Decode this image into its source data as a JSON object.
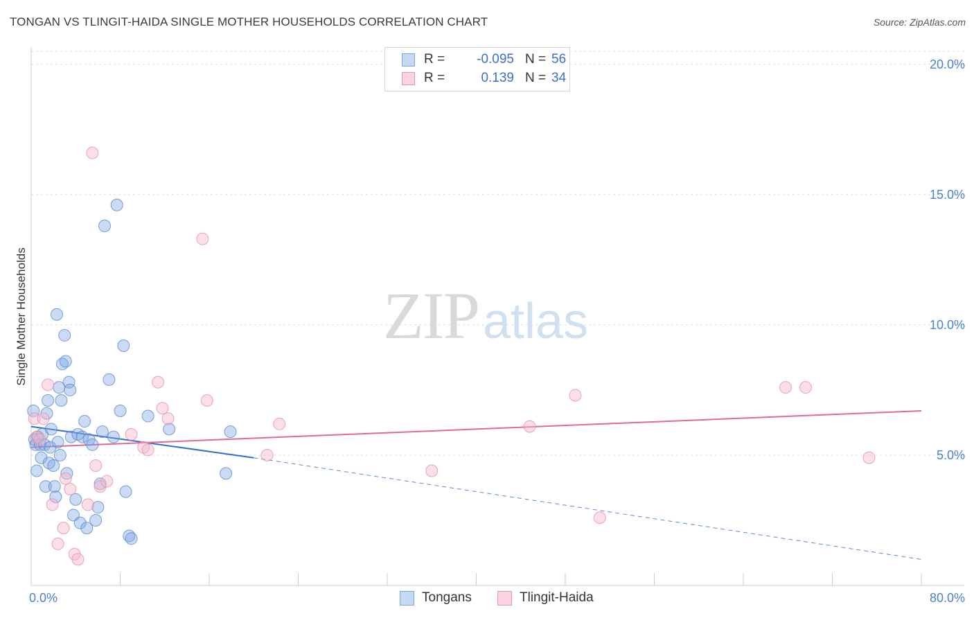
{
  "title": "TONGAN VS TLINGIT-HAIDA SINGLE MOTHER HOUSEHOLDS CORRELATION CHART",
  "source": "Source: ZipAtlas.com",
  "watermark": {
    "zip": "ZIP",
    "atlas": "atlas"
  },
  "legend": {
    "rows": [
      {
        "r_label": "R =",
        "r_value": "-0.095",
        "n_label": "N =",
        "n_value": "56",
        "color": "#7aa6e0"
      },
      {
        "r_label": "R =",
        "r_value": "0.139",
        "n_label": "N =",
        "n_value": "34",
        "color": "#e893b0"
      }
    ]
  },
  "series_legend": [
    {
      "name": "Tongans",
      "color": "#7aa6e0"
    },
    {
      "name": "Tlingit-Haida",
      "color": "#e893b0"
    }
  ],
  "chart_data": {
    "type": "scatter",
    "title": "TONGAN VS TLINGIT-HAIDA SINGLE MOTHER HOUSEHOLDS CORRELATION CHART",
    "xlabel": "",
    "ylabel": "Single Mother Households",
    "xlim": [
      0,
      80
    ],
    "ylim": [
      0,
      20.5
    ],
    "x_tick_labels": [
      "0.0%",
      "80.0%"
    ],
    "y_ticks": [
      5,
      10,
      15,
      20
    ],
    "y_tick_labels": [
      "5.0%",
      "10.0%",
      "15.0%",
      "20.0%"
    ],
    "grid": true,
    "series": [
      {
        "name": "Tongans",
        "color": "#7aa6e0",
        "stroke": "#5a8ad0",
        "x": [
          0.2,
          0.3,
          0.4,
          0.5,
          0.6,
          0.8,
          0.9,
          1.0,
          1.2,
          1.3,
          1.4,
          1.5,
          1.6,
          1.7,
          1.8,
          2.0,
          2.1,
          2.2,
          2.3,
          2.4,
          2.5,
          2.6,
          2.7,
          2.8,
          3.0,
          3.1,
          3.2,
          3.4,
          3.5,
          3.6,
          3.8,
          4.0,
          4.2,
          4.4,
          4.6,
          4.8,
          5.0,
          5.2,
          5.5,
          5.8,
          6.0,
          6.2,
          6.4,
          6.6,
          7.0,
          7.4,
          7.7,
          8.0,
          8.3,
          8.5,
          8.8,
          9.0,
          10.5,
          12.4,
          17.5,
          17.9
        ],
        "y": [
          6.7,
          5.6,
          5.4,
          4.4,
          5.7,
          5.4,
          4.9,
          5.8,
          5.4,
          3.8,
          6.6,
          7.1,
          4.7,
          5.3,
          6.0,
          4.6,
          3.8,
          3.4,
          10.4,
          5.5,
          7.6,
          5.0,
          7.1,
          8.5,
          9.6,
          8.6,
          4.3,
          7.8,
          7.5,
          5.7,
          2.7,
          3.3,
          5.8,
          2.4,
          5.7,
          6.3,
          2.2,
          5.6,
          5.4,
          2.5,
          3.0,
          3.9,
          5.9,
          13.8,
          7.9,
          5.7,
          14.6,
          6.7,
          9.2,
          3.6,
          1.9,
          1.8,
          6.5,
          6.0,
          4.3,
          5.9
        ],
        "trend": {
          "x": [
            0,
            20
          ],
          "y": [
            6.1,
            4.9
          ],
          "dashed_x": [
            20,
            80
          ],
          "dashed_y": [
            4.9,
            1.0
          ]
        }
      },
      {
        "name": "Tlingit-Haida",
        "color": "#f4b8cb",
        "stroke": "#e58fab",
        "x": [
          0.3,
          0.5,
          0.8,
          1.1,
          1.5,
          1.9,
          2.4,
          2.9,
          3.1,
          3.5,
          3.9,
          4.2,
          5.1,
          5.5,
          5.8,
          6.2,
          6.8,
          9.0,
          10.1,
          10.5,
          11.4,
          11.8,
          12.3,
          15.4,
          15.8,
          21.2,
          22.3,
          36.0,
          44.8,
          48.9,
          51.1,
          67.8,
          69.6,
          75.3
        ],
        "y": [
          6.4,
          5.7,
          5.6,
          6.4,
          7.7,
          3.1,
          1.6,
          2.2,
          4.1,
          3.7,
          1.2,
          1.0,
          3.1,
          16.6,
          4.6,
          3.8,
          4.0,
          5.8,
          5.3,
          5.2,
          7.8,
          6.8,
          6.4,
          13.3,
          7.1,
          5.0,
          6.2,
          4.4,
          6.1,
          7.3,
          2.6,
          7.6,
          7.6,
          4.9
        ],
        "trend": {
          "x": [
            0,
            80
          ],
          "y": [
            5.3,
            6.7
          ]
        }
      }
    ]
  }
}
